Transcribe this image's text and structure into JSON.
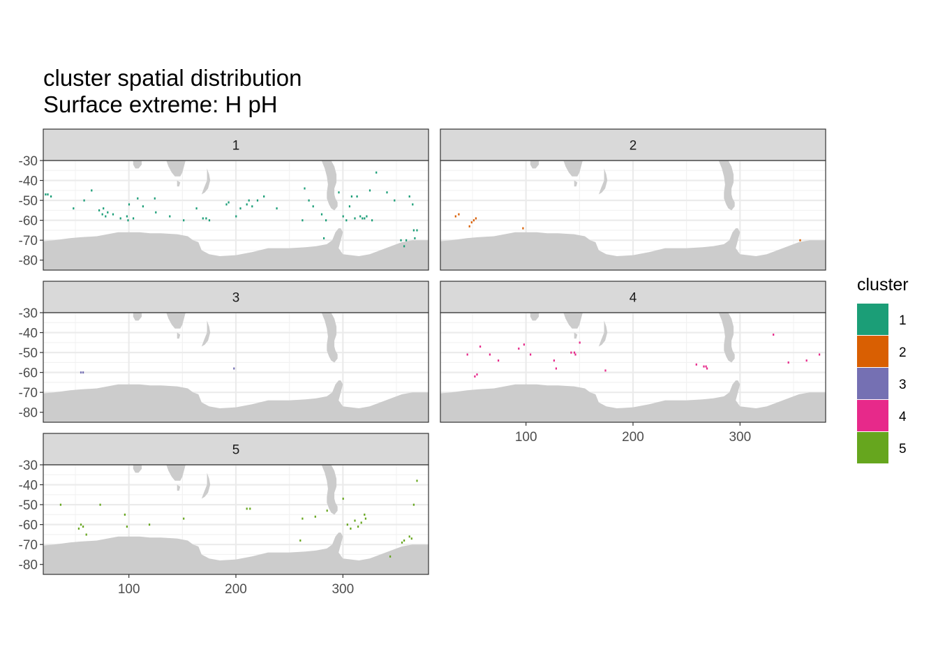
{
  "chart_data": {
    "type": "heatmap",
    "title": "cluster spatial distribution",
    "subtitle": "Surface extreme: H pH",
    "xlim": [
      20,
      380
    ],
    "ylim": [
      -85,
      -30
    ],
    "x_ticks": [
      100,
      200,
      300
    ],
    "y_ticks": [
      -30,
      -40,
      -50,
      -60,
      -70,
      -80
    ],
    "y_tick_labels": [
      "-30",
      "-40",
      "-50",
      "-60",
      "-70",
      "-80"
    ],
    "x_tick_labels": [
      "100",
      "200",
      "300"
    ],
    "grid": true,
    "legend": {
      "title": "cluster",
      "placement": "right",
      "items": [
        {
          "label": "1",
          "color": "#1B9E77"
        },
        {
          "label": "2",
          "color": "#D95F02"
        },
        {
          "label": "3",
          "color": "#7570B3"
        },
        {
          "label": "4",
          "color": "#E7298A"
        },
        {
          "label": "5",
          "color": "#66A61E"
        }
      ]
    },
    "land_color": "#CCCCCC",
    "panels": [
      {
        "label": "1",
        "cluster": 1,
        "points": [
          [
            22,
            -47
          ],
          [
            24,
            -47
          ],
          [
            27,
            -48
          ],
          [
            48,
            -54
          ],
          [
            58,
            -50
          ],
          [
            65,
            -45
          ],
          [
            72,
            -55
          ],
          [
            76,
            -54
          ],
          [
            75,
            -57
          ],
          [
            78,
            -58
          ],
          [
            80,
            -56
          ],
          [
            85,
            -57
          ],
          [
            92,
            -59
          ],
          [
            98,
            -58
          ],
          [
            99,
            -60
          ],
          [
            100,
            -52
          ],
          [
            104,
            -59
          ],
          [
            108,
            -49
          ],
          [
            113,
            -53
          ],
          [
            124,
            -49
          ],
          [
            125,
            -56
          ],
          [
            138,
            -58
          ],
          [
            151,
            -60
          ],
          [
            163,
            -54
          ],
          [
            169,
            -59
          ],
          [
            172,
            -59
          ],
          [
            175,
            -60
          ],
          [
            191,
            -52
          ],
          [
            193,
            -51
          ],
          [
            200,
            -58
          ],
          [
            204,
            -54
          ],
          [
            210,
            -52
          ],
          [
            212,
            -50
          ],
          [
            215,
            -53
          ],
          [
            220,
            -50
          ],
          [
            226,
            -48
          ],
          [
            238,
            -54
          ],
          [
            262,
            -60
          ],
          [
            264,
            -44
          ],
          [
            268,
            -50
          ],
          [
            272,
            -53
          ],
          [
            280,
            -57
          ],
          [
            282,
            -69
          ],
          [
            284,
            -60
          ],
          [
            296,
            -46
          ],
          [
            300,
            -58
          ],
          [
            303,
            -60
          ],
          [
            306,
            -53
          ],
          [
            308,
            -48
          ],
          [
            311,
            -59
          ],
          [
            313,
            -48
          ],
          [
            316,
            -58
          ],
          [
            318,
            -59
          ],
          [
            320,
            -59
          ],
          [
            322,
            -58
          ],
          [
            325,
            -45
          ],
          [
            327,
            -60
          ],
          [
            331,
            -36
          ],
          [
            341,
            -46
          ],
          [
            348,
            -50
          ],
          [
            354,
            -70
          ],
          [
            357,
            -73
          ],
          [
            359,
            -70
          ],
          [
            365,
            -52
          ],
          [
            366,
            -65
          ],
          [
            367,
            -69
          ],
          [
            369,
            -65
          ],
          [
            362,
            -48
          ]
        ]
      },
      {
        "label": "2",
        "cluster": 2,
        "points": [
          [
            34,
            -58
          ],
          [
            37,
            -57
          ],
          [
            47,
            -63
          ],
          [
            49,
            -61
          ],
          [
            51,
            -60
          ],
          [
            53,
            -59
          ],
          [
            97,
            -64
          ],
          [
            356,
            -70
          ]
        ]
      },
      {
        "label": "3",
        "cluster": 3,
        "points": [
          [
            55,
            -60
          ],
          [
            57,
            -60
          ],
          [
            198,
            -58
          ]
        ]
      },
      {
        "label": "4",
        "cluster": 4,
        "points": [
          [
            45,
            -51
          ],
          [
            54,
            -61
          ],
          [
            52,
            -62
          ],
          [
            57,
            -47
          ],
          [
            66,
            -51
          ],
          [
            74,
            -54
          ],
          [
            93,
            -48
          ],
          [
            98,
            -46
          ],
          [
            104,
            -51
          ],
          [
            126,
            -54
          ],
          [
            128,
            -58
          ],
          [
            142,
            -50
          ],
          [
            145,
            -50
          ],
          [
            146,
            -51
          ],
          [
            150,
            -45
          ],
          [
            174,
            -59
          ],
          [
            259,
            -56
          ],
          [
            266,
            -57
          ],
          [
            268,
            -57
          ],
          [
            269,
            -58
          ],
          [
            331,
            -41
          ],
          [
            345,
            -55
          ],
          [
            362,
            -54
          ],
          [
            374,
            -51
          ]
        ]
      },
      {
        "label": "5",
        "cluster": 5,
        "points": [
          [
            36,
            -50
          ],
          [
            53,
            -62
          ],
          [
            55,
            -60
          ],
          [
            57,
            -61
          ],
          [
            60,
            -65
          ],
          [
            73,
            -50
          ],
          [
            96,
            -55
          ],
          [
            98,
            -61
          ],
          [
            119,
            -60
          ],
          [
            151,
            -57
          ],
          [
            210,
            -52
          ],
          [
            213,
            -52
          ],
          [
            260,
            -68
          ],
          [
            262,
            -57
          ],
          [
            274,
            -56
          ],
          [
            285,
            -53
          ],
          [
            300,
            -47
          ],
          [
            304,
            -60
          ],
          [
            307,
            -62
          ],
          [
            311,
            -58
          ],
          [
            314,
            -61
          ],
          [
            317,
            -59
          ],
          [
            320,
            -55
          ],
          [
            321,
            -57
          ],
          [
            344,
            -76
          ],
          [
            355,
            -69
          ],
          [
            357,
            -68
          ],
          [
            362,
            -66
          ],
          [
            364,
            -67
          ],
          [
            366,
            -50
          ],
          [
            369,
            -38
          ]
        ]
      }
    ]
  }
}
